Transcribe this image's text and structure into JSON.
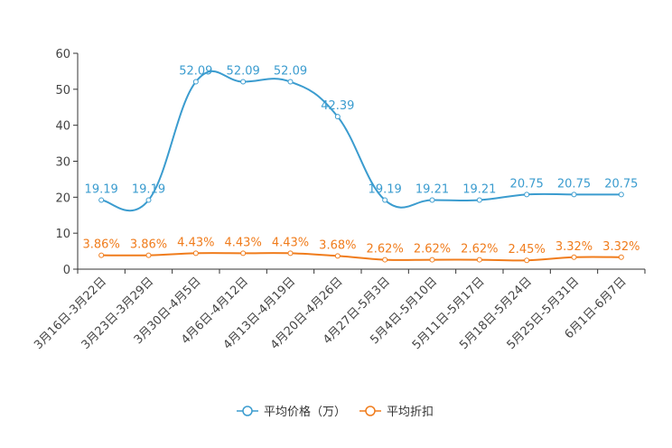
{
  "chart_data": {
    "type": "line",
    "title": "",
    "xlabel": "",
    "ylabel": "",
    "ylim": [
      0,
      60
    ],
    "yticks": [
      0,
      10,
      20,
      30,
      40,
      50,
      60
    ],
    "grid": false,
    "legend_position": "bottom-center",
    "categories": [
      "3月16日-3月22日",
      "3月23日-3月29日",
      "3月30日-4月5日",
      "4月6日-4月12日",
      "4月13日-4月19日",
      "4月20日-4月26日",
      "4月27日-5月3日",
      "5月4日-5月10日",
      "5月11日-5月17日",
      "5月18日-5月24日",
      "5月25日-5月31日",
      "6月1日-6月7日"
    ],
    "series": [
      {
        "name": "平均价格（万）",
        "color": "#3b9ccf",
        "values": [
          19.19,
          19.19,
          52.09,
          52.09,
          52.09,
          42.39,
          19.19,
          19.21,
          19.21,
          20.75,
          20.75,
          20.75
        ],
        "labels": [
          "19.19",
          "19.19",
          "52.09",
          "52.09",
          "52.09",
          "42.39",
          "19.19",
          "19.21",
          "19.21",
          "20.75",
          "20.75",
          "20.75"
        ]
      },
      {
        "name": "平均折扣",
        "color": "#f07c1c",
        "values": [
          3.86,
          3.86,
          4.43,
          4.43,
          4.43,
          3.68,
          2.62,
          2.62,
          2.62,
          2.45,
          3.32,
          3.32
        ],
        "labels": [
          "3.86%",
          "3.86%",
          "4.43%",
          "4.43%",
          "4.43%",
          "3.68%",
          "2.62%",
          "2.62%",
          "2.62%",
          "2.45%",
          "3.32%",
          "3.32%"
        ]
      }
    ]
  }
}
